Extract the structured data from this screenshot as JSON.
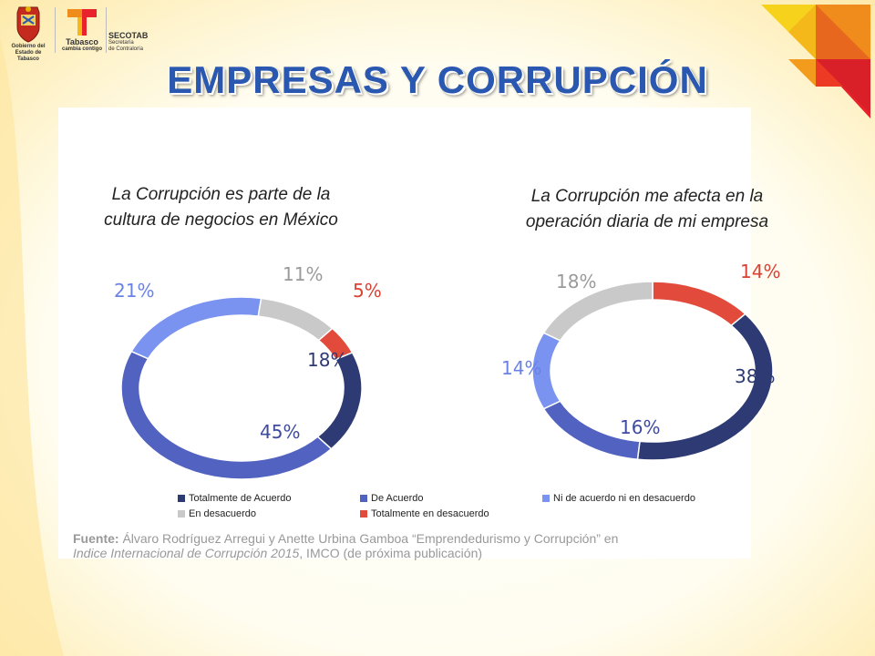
{
  "header": {
    "logo_left_text_1": "Gobierno del",
    "logo_left_text_2": "Estado de Tabasco",
    "logo_mid_text_1": "Tabasco",
    "logo_mid_text_2": "cambia contigo",
    "logo_right_text_1": "SECOTAB",
    "logo_right_text_2": "Secretaría",
    "logo_right_text_3": "de Contraloría"
  },
  "slide": {
    "title": "EMPRESAS Y CORRUPCIÓN"
  },
  "colors": {
    "totalmente_de_acuerdo": "#2e3a73",
    "de_acuerdo": "#5262c0",
    "ni_de_acuerdo": "#7b93f0",
    "en_desacuerdo": "#c9c9c9",
    "totalmente_en_desacuerdo": "#e24b3c",
    "title": "#2a57b0"
  },
  "chart_data": [
    {
      "type": "pie",
      "title": "La Corrupción es parte de la cultura de negocios en México",
      "categories": [
        "Totalmente de Acuerdo",
        "De Acuerdo",
        "Ni de acuerdo ni en desacuerdo",
        "En desacuerdo",
        "Totalmente en desacuerdo"
      ],
      "values": [
        18,
        45,
        21,
        11,
        5
      ],
      "labels": [
        "18%",
        "45%",
        "21%",
        "11%",
        "5%"
      ]
    },
    {
      "type": "pie",
      "title": "La Corrupción me afecta en la operación diaria de mi empresa",
      "categories": [
        "Totalmente de Acuerdo",
        "De Acuerdo",
        "Ni de acuerdo ni en desacuerdo",
        "En desacuerdo",
        "Totalmente en desacuerdo"
      ],
      "values": [
        38,
        16,
        14,
        18,
        14
      ],
      "labels": [
        "38%",
        "16%",
        "14%",
        "18%",
        "14%"
      ]
    }
  ],
  "chart_title_lines": [
    [
      "La Corrupción es parte de la",
      "cultura de negocios en México"
    ],
    [
      "La Corrupción me afecta en la",
      "operación diaria de mi empresa"
    ]
  ],
  "legend": {
    "items": [
      "Totalmente de Acuerdo",
      "De Acuerdo",
      "Ni de acuerdo ni en desacuerdo",
      "En desacuerdo",
      "Totalmente en desacuerdo"
    ]
  },
  "source": {
    "label": "Fuente:",
    "text_1": " Álvaro Rodríguez Arregui y Anette Urbina Gamboa “Emprendedurismo y Corrupción” en",
    "italic": "Indice Internacional de Corrupción 2015",
    "text_2": ", IMCO (de próxima publicación)"
  }
}
